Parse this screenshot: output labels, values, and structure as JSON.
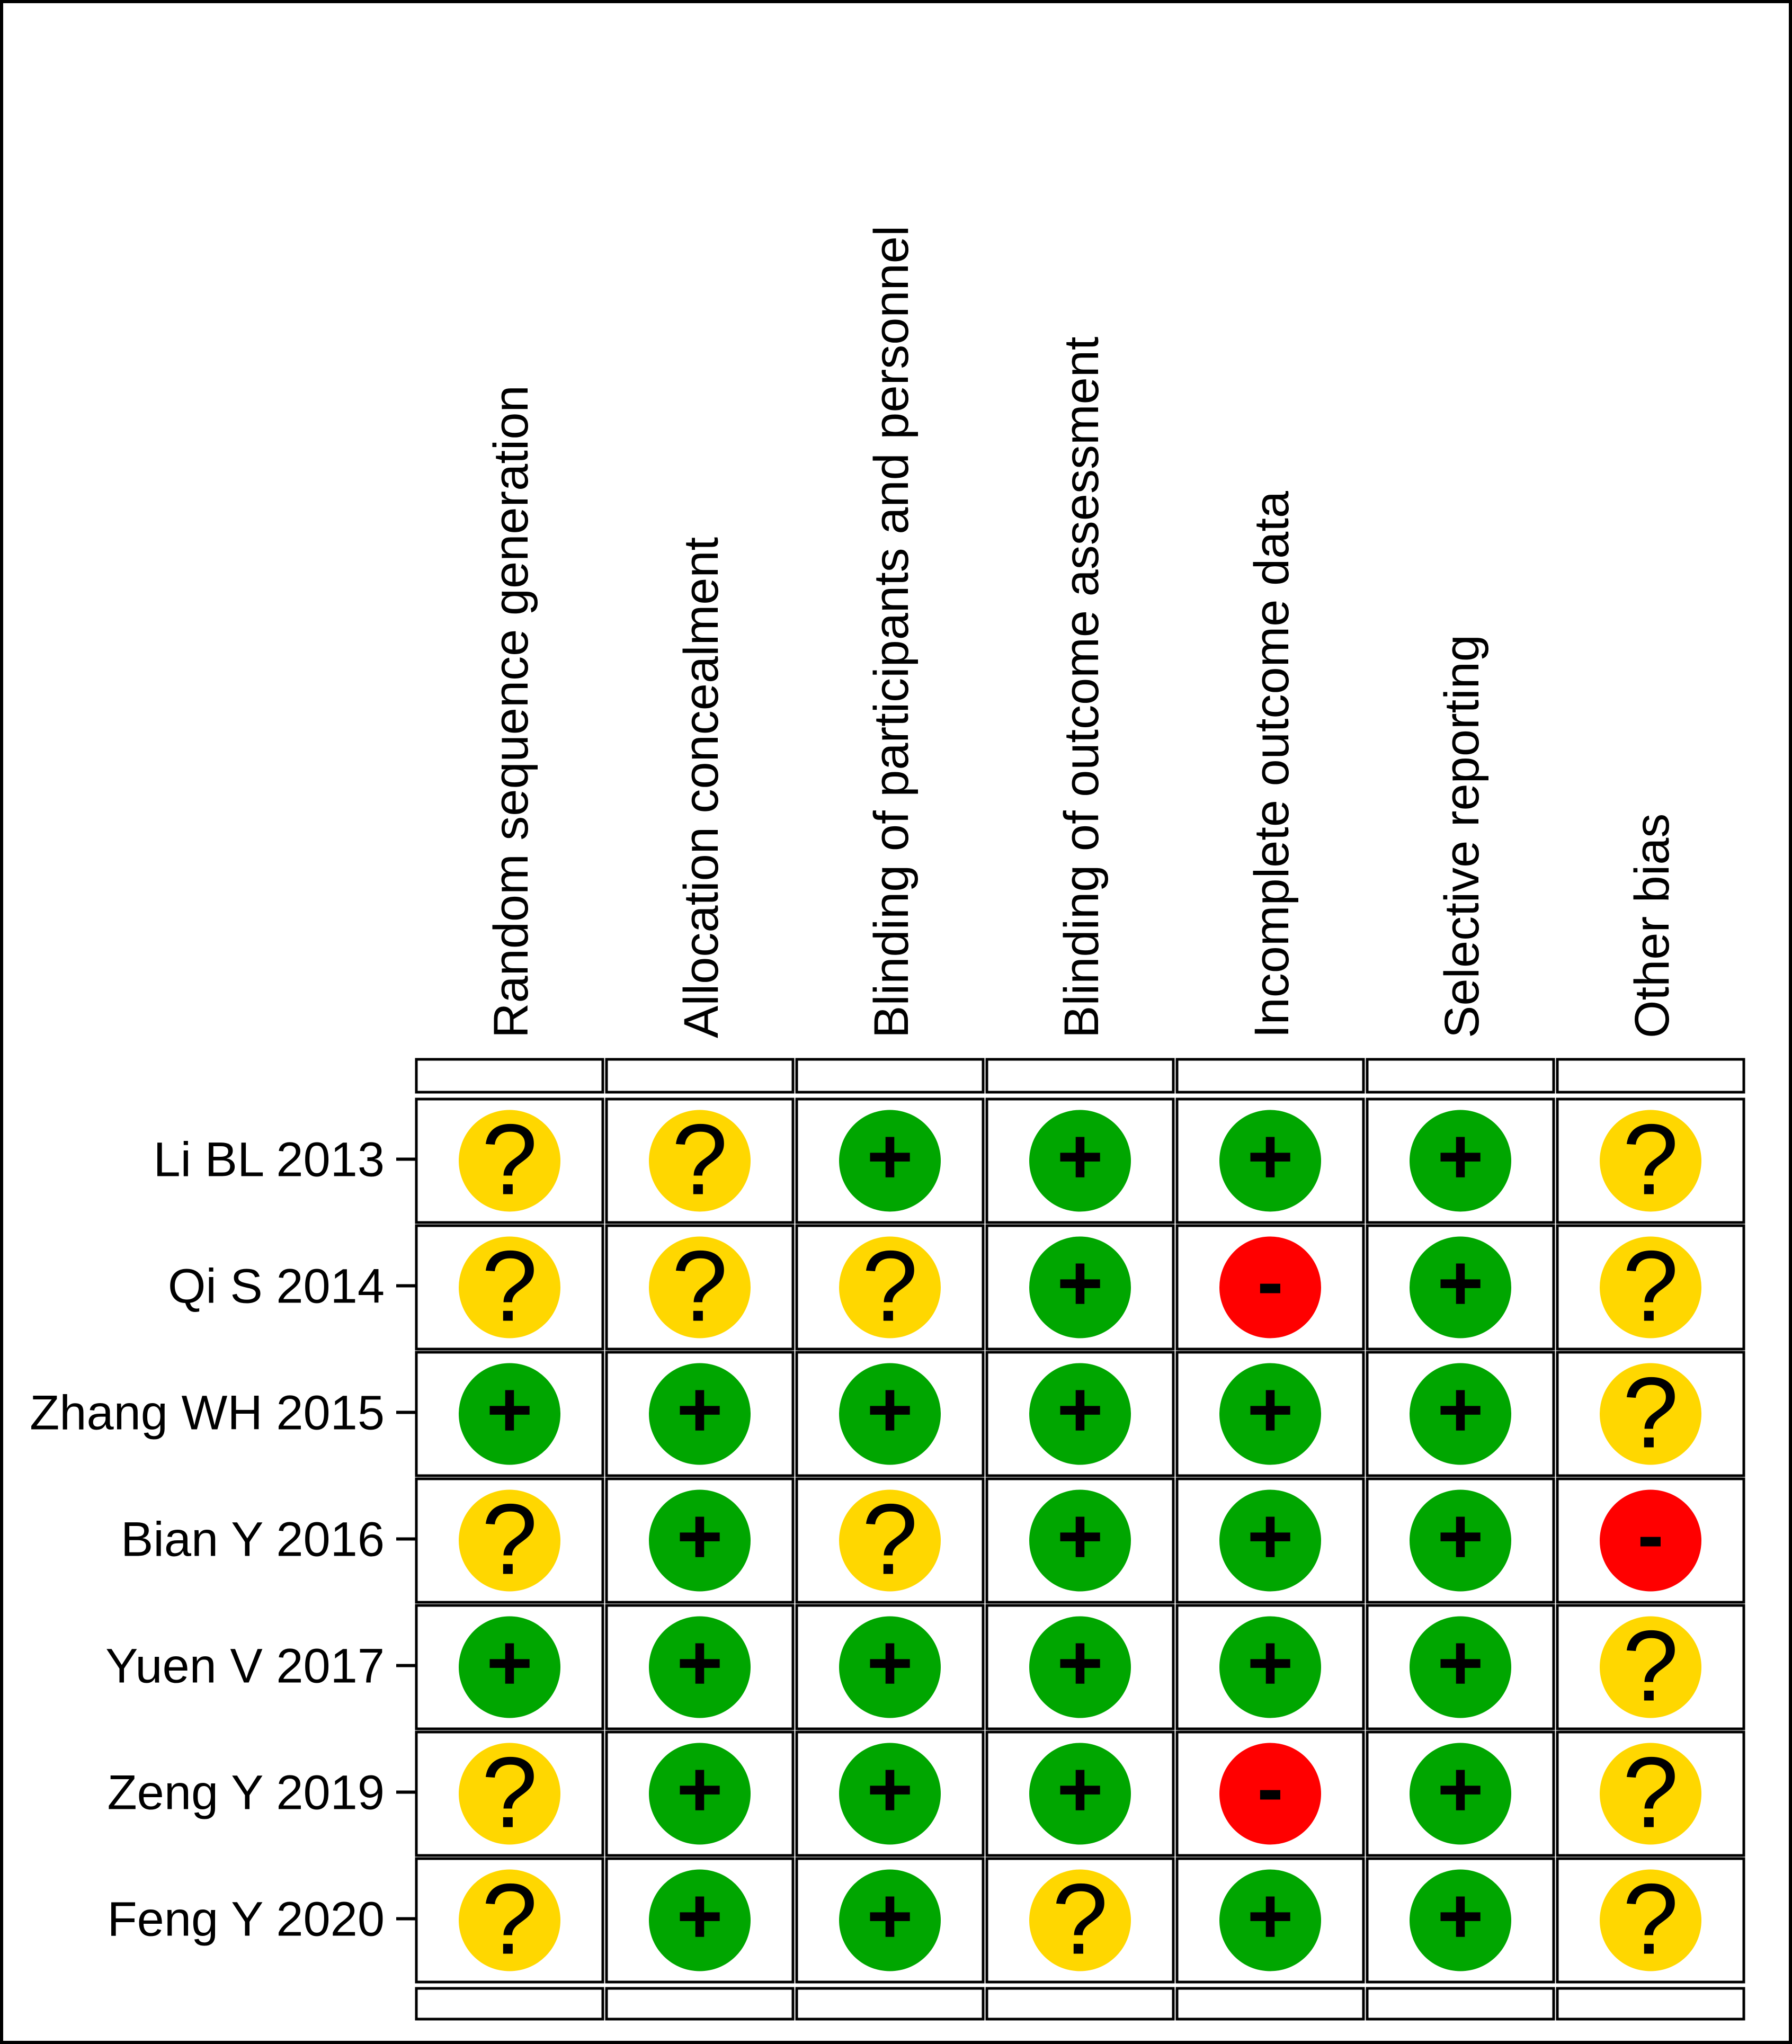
{
  "chart_data": {
    "type": "table",
    "domains": [
      "Random sequence generation",
      "Allocation concealment",
      "Blinding of participants and personnel",
      "Blinding of outcome assessment",
      "Incomplete outcome data",
      "Selective reporting",
      "Other bias"
    ],
    "studies": [
      "Li BL 2013",
      "Qi S 2014",
      "Zhang WH 2015",
      "Bian Y 2016",
      "Yuen V 2017",
      "Zeng Y 2019",
      "Feng Y 2020"
    ],
    "judgements": [
      [
        "?",
        "?",
        "+",
        "+",
        "+",
        "+",
        "?"
      ],
      [
        "?",
        "?",
        "?",
        "+",
        "-",
        "+",
        "?"
      ],
      [
        "+",
        "+",
        "+",
        "+",
        "+",
        "+",
        "?"
      ],
      [
        "?",
        "+",
        "?",
        "+",
        "+",
        "+",
        "-"
      ],
      [
        "+",
        "+",
        "+",
        "+",
        "+",
        "+",
        "?"
      ],
      [
        "?",
        "+",
        "+",
        "+",
        "-",
        "+",
        "?"
      ],
      [
        "?",
        "+",
        "+",
        "?",
        "+",
        "+",
        "?"
      ]
    ],
    "legend_colors": {
      "+": "#00a600",
      "?": "#ffd700",
      "-": "#ff0000"
    }
  }
}
